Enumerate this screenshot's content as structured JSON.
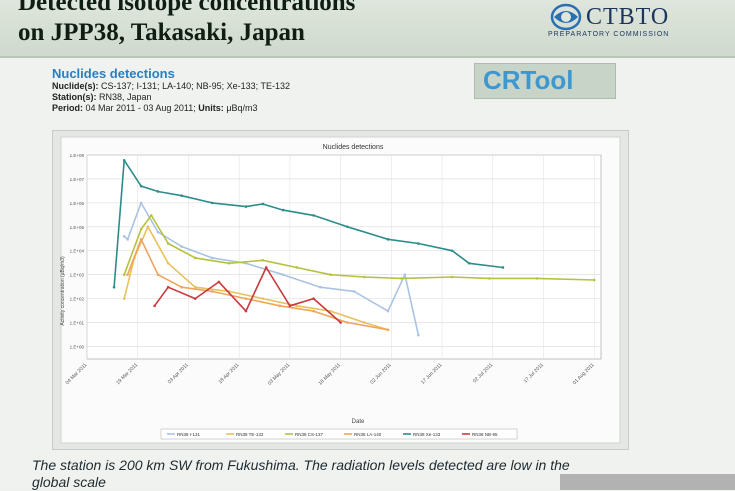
{
  "slide": {
    "title_line1": "Detected isotope concentrations",
    "title_line2": "on JPP38, Takasaki, Japan",
    "brand_name": "CTBTO",
    "brand_sub": "PREPARATORY COMMISSION",
    "tool_name": "CRTool",
    "caption_line1": "The station is 200 km SW from Fukushima. The radiation levels detected are low in the",
    "caption_line2": "global scale"
  },
  "meta": {
    "heading": "Nuclides detections",
    "nuclides_label": "Nuclide(s):",
    "nuclides_value": "CS-137; I-131; LA-140; NB-95; Xe-133; TE-132",
    "stations_label": "Station(s):",
    "stations_value": "RN38, Japan",
    "period_label": "Period:",
    "period_value": "04 Mar 2011 - 03 Aug 2011;",
    "units_label": "Units:",
    "units_value": "μBq/m3"
  },
  "colors": {
    "accent_blue": "#2a7fc0",
    "brand_navy": "#1b355d"
  },
  "chart_data": {
    "type": "line",
    "title": "Nuclides detections",
    "xlabel": "Date",
    "ylabel": "Activity concentration (μBq/m3)",
    "yscale": "log",
    "ylim": [
      0.3,
      100000000
    ],
    "y_tick_labels": [
      "1.E+08",
      "1.E+07",
      "1.E+06",
      "1.E+05",
      "1.E+04",
      "1.E+03",
      "1.E+02",
      "1.E+01",
      "1.E+00"
    ],
    "x_tick_labels": [
      "04 Mar 2011",
      "19 Mar 2011",
      "03 Apr 2011",
      "18 Apr 2011",
      "03 May 2011",
      "18 May 2011",
      "02 Jun 2011",
      "17 Jun 2011",
      "02 Jul 2011",
      "17 Jul 2011",
      "01 Aug 2011"
    ],
    "xlim": [
      "2011-03-04",
      "2011-08-03"
    ],
    "grid": true,
    "legend_position": "bottom",
    "series": [
      {
        "name": "RN38 I-131",
        "color": "#a9c3e3",
        "x": [
          "2011-03-15",
          "2011-03-16",
          "2011-03-20",
          "2011-03-25",
          "2011-04-01",
          "2011-04-10",
          "2011-04-20",
          "2011-05-01",
          "2011-05-12",
          "2011-05-22",
          "2011-06-01",
          "2011-06-06",
          "2011-06-10"
        ],
        "y": [
          40000,
          30000,
          1000000,
          60000,
          15000,
          5000,
          3000,
          1000,
          300,
          200,
          30,
          1000,
          3
        ]
      },
      {
        "name": "RN38 TE-132",
        "color": "#e8c15a",
        "x": [
          "2011-03-15",
          "2011-03-18",
          "2011-03-22",
          "2011-03-28",
          "2011-04-05",
          "2011-04-15",
          "2011-04-25",
          "2011-05-05",
          "2011-05-15",
          "2011-05-25",
          "2011-06-01"
        ],
        "y": [
          100,
          5000,
          100000,
          3000,
          300,
          200,
          100,
          50,
          30,
          10,
          5
        ]
      },
      {
        "name": "RN38 CS-137",
        "color": "#b6c23c",
        "x": [
          "2011-03-15",
          "2011-03-20",
          "2011-03-23",
          "2011-03-28",
          "2011-04-05",
          "2011-04-15",
          "2011-04-25",
          "2011-05-05",
          "2011-05-15",
          "2011-05-25",
          "2011-06-05",
          "2011-06-20",
          "2011-07-01",
          "2011-07-15",
          "2011-08-01"
        ],
        "y": [
          1000,
          80000,
          300000,
          20000,
          5000,
          3000,
          4000,
          2000,
          1000,
          800,
          700,
          800,
          700,
          700,
          600
        ]
      },
      {
        "name": "RN38 LA-140",
        "color": "#f0a35a",
        "x": [
          "2011-03-16",
          "2011-03-20",
          "2011-03-25",
          "2011-04-01",
          "2011-04-10",
          "2011-04-20",
          "2011-04-30",
          "2011-05-10",
          "2011-05-20",
          "2011-06-01"
        ],
        "y": [
          1000,
          30000,
          1000,
          300,
          200,
          100,
          50,
          30,
          10,
          5
        ]
      },
      {
        "name": "RN38 Xe-133",
        "color": "#2a8d8a",
        "x": [
          "2011-03-12",
          "2011-03-15",
          "2011-03-20",
          "2011-03-25",
          "2011-04-01",
          "2011-04-10",
          "2011-04-20",
          "2011-04-25",
          "2011-05-01",
          "2011-05-10",
          "2011-05-20",
          "2011-06-01",
          "2011-06-10",
          "2011-06-20",
          "2011-06-25",
          "2011-07-05"
        ],
        "y": [
          300,
          60000000,
          5000000,
          3000000,
          2000000,
          1000000,
          700000,
          900000,
          500000,
          300000,
          100000,
          30000,
          20000,
          10000,
          3000,
          2000
        ]
      },
      {
        "name": "RN38 NB-95",
        "color": "#c9393d",
        "x": [
          "2011-03-24",
          "2011-03-28",
          "2011-04-05",
          "2011-04-12",
          "2011-04-20",
          "2011-04-26",
          "2011-05-03",
          "2011-05-10",
          "2011-05-18"
        ],
        "y": [
          50,
          300,
          100,
          500,
          30,
          2000,
          50,
          100,
          10
        ]
      }
    ]
  }
}
